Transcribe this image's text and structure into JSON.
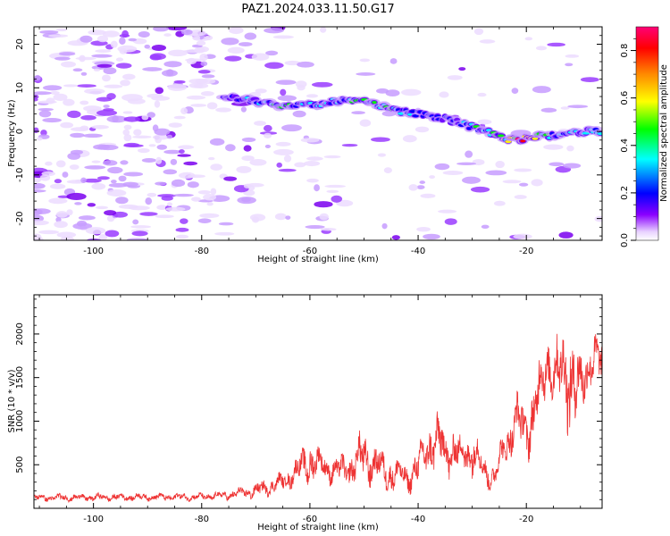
{
  "title": "PAZ1.2024.033.11.50.G17",
  "chart_data": [
    {
      "type": "heatmap",
      "xlabel": "Height of straight line (km)",
      "ylabel": "Frequency (Hz)",
      "xlim": [
        -111,
        -6
      ],
      "ylim": [
        -25,
        24
      ],
      "xticks": [
        -100,
        -80,
        -60,
        -40,
        -20
      ],
      "yticks": [
        -20,
        -10,
        0,
        10,
        20
      ],
      "colorbar": {
        "label": "Normalized spectral amplitude",
        "range": [
          0.0,
          0.9
        ],
        "ticks": [
          0.0,
          0.2,
          0.4,
          0.6,
          0.8
        ],
        "colors": [
          "#ffffff",
          "#e6ccff",
          "#8800ff",
          "#0000ff",
          "#00ffff",
          "#00ff00",
          "#ffff00",
          "#ff8800",
          "#ff0000",
          "#ff0066"
        ]
      },
      "ridge": {
        "x": [
          -76,
          -70,
          -65,
          -60,
          -55,
          -50,
          -45,
          -40,
          -35,
          -30,
          -27,
          -24,
          -21,
          -18,
          -15,
          -12,
          -9,
          -6
        ],
        "y": [
          8,
          7,
          6,
          6,
          7,
          7,
          5,
          4,
          3,
          1,
          0,
          -2,
          -2,
          -1,
          -1,
          0,
          0,
          0
        ],
        "amplitude": [
          0.3,
          0.32,
          0.45,
          0.4,
          0.35,
          0.45,
          0.4,
          0.3,
          0.28,
          0.4,
          0.35,
          0.55,
          0.85,
          0.55,
          0.35,
          0.4,
          0.35,
          0.5
        ]
      }
    },
    {
      "type": "line",
      "xlabel": "Height of straight line (km)",
      "ylabel": "SNR (10 * v/v)",
      "xlim": [
        -111,
        -6
      ],
      "ylim": [
        0,
        2450
      ],
      "xticks": [
        -100,
        -80,
        -60,
        -40,
        -20
      ],
      "yticks": [
        500,
        1000,
        1500,
        2000
      ],
      "color": "#ee3333",
      "envelope": {
        "x": [
          -111,
          -100,
          -90,
          -80,
          -75,
          -70,
          -65,
          -62,
          -60,
          -58,
          -55,
          -52,
          -50,
          -48,
          -45,
          -42,
          -40,
          -38,
          -35,
          -32,
          -30,
          -28,
          -26,
          -24,
          -22,
          -20,
          -18,
          -16,
          -14,
          -12,
          -10,
          -8,
          -6
        ],
        "mean": [
          120,
          125,
          130,
          130,
          150,
          200,
          300,
          450,
          550,
          500,
          420,
          480,
          600,
          500,
          400,
          350,
          450,
          750,
          700,
          600,
          700,
          450,
          350,
          700,
          1000,
          900,
          1200,
          1700,
          1500,
          1600,
          1300,
          1800,
          1600
        ],
        "amplitude": [
          40,
          40,
          40,
          40,
          50,
          80,
          100,
          150,
          250,
          150,
          150,
          200,
          300,
          200,
          200,
          150,
          200,
          300,
          300,
          200,
          300,
          150,
          150,
          200,
          300,
          300,
          400,
          300,
          400,
          600,
          400,
          300,
          250
        ]
      }
    }
  ]
}
